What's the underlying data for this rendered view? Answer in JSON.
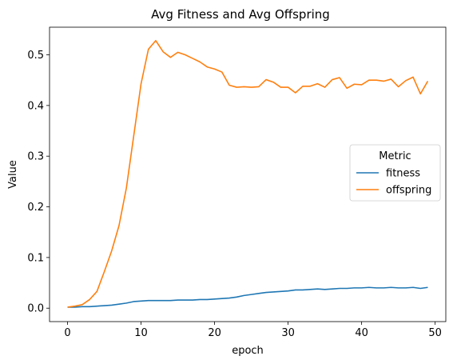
{
  "chart_data": {
    "type": "line",
    "title": "Avg Fitness and Avg Offspring",
    "xlabel": "epoch",
    "ylabel": "Value",
    "xlim": [
      -2.45,
      51.45
    ],
    "ylim": [
      -0.0265,
      0.5545
    ],
    "xticks": [
      0,
      10,
      20,
      30,
      40,
      50
    ],
    "yticks": [
      0.0,
      0.1,
      0.2,
      0.3,
      0.4,
      0.5
    ],
    "xtick_labels": [
      "0",
      "10",
      "20",
      "30",
      "40",
      "50"
    ],
    "ytick_labels": [
      "0.0",
      "0.1",
      "0.2",
      "0.3",
      "0.4",
      "0.5"
    ],
    "grid": false,
    "legend": {
      "title": "Metric",
      "position": "center-right"
    },
    "x": [
      0,
      1,
      2,
      3,
      4,
      5,
      6,
      7,
      8,
      9,
      10,
      11,
      12,
      13,
      14,
      15,
      16,
      17,
      18,
      19,
      20,
      21,
      22,
      23,
      24,
      25,
      26,
      27,
      28,
      29,
      30,
      31,
      32,
      33,
      34,
      35,
      36,
      37,
      38,
      39,
      40,
      41,
      42,
      43,
      44,
      45,
      46,
      47,
      48,
      49
    ],
    "series": [
      {
        "name": "fitness",
        "color": "#1f77b4",
        "values": [
          0.002,
          0.002,
          0.003,
          0.003,
          0.004,
          0.005,
          0.006,
          0.008,
          0.01,
          0.013,
          0.014,
          0.015,
          0.015,
          0.015,
          0.015,
          0.016,
          0.016,
          0.016,
          0.017,
          0.017,
          0.018,
          0.019,
          0.02,
          0.022,
          0.025,
          0.027,
          0.029,
          0.031,
          0.032,
          0.033,
          0.034,
          0.036,
          0.036,
          0.037,
          0.038,
          0.037,
          0.038,
          0.039,
          0.039,
          0.04,
          0.04,
          0.041,
          0.04,
          0.04,
          0.041,
          0.04,
          0.04,
          0.041,
          0.039,
          0.041
        ]
      },
      {
        "name": "offspring",
        "color": "#ff7f0e",
        "values": [
          0.002,
          0.004,
          0.007,
          0.017,
          0.033,
          0.072,
          0.113,
          0.163,
          0.237,
          0.34,
          0.443,
          0.511,
          0.528,
          0.506,
          0.495,
          0.505,
          0.5,
          0.493,
          0.486,
          0.476,
          0.472,
          0.466,
          0.44,
          0.436,
          0.437,
          0.436,
          0.437,
          0.451,
          0.446,
          0.436,
          0.436,
          0.425,
          0.438,
          0.438,
          0.443,
          0.436,
          0.451,
          0.455,
          0.434,
          0.442,
          0.441,
          0.45,
          0.45,
          0.448,
          0.452,
          0.437,
          0.449,
          0.456,
          0.423,
          0.448
        ]
      }
    ]
  }
}
